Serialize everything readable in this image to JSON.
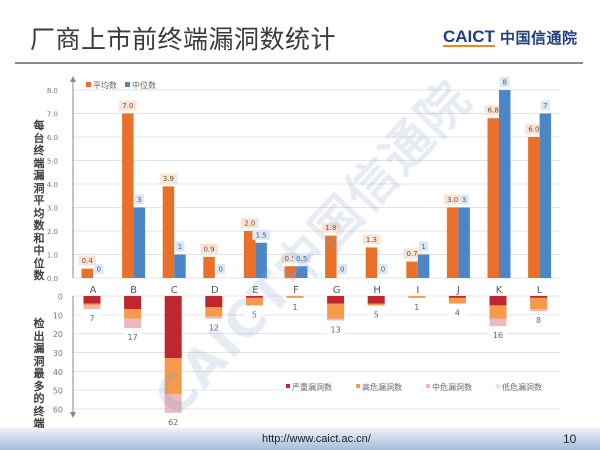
{
  "header": {
    "title": "厂商上市前终端漏洞数统计",
    "logo_en": "CAICT",
    "logo_cn": "中国信通院"
  },
  "watermark": "CAICT中国信通院",
  "footer": {
    "url": "http://www.caict.ac.cn/",
    "page": "10"
  },
  "colors": {
    "mean": "#E8702B",
    "median": "#4C86C6",
    "severe": "#C0262F",
    "high": "#F5994A",
    "medium": "#EDB8BB",
    "low": "#FBE2CC",
    "mean_label_bg": "#FBE4D4",
    "median_label_bg": "#DAE7F5",
    "grid": "#E3E3E3",
    "axis": "#8A8A8A"
  },
  "chart_data": [
    {
      "type": "bar",
      "title": "",
      "xlabel": "",
      "ylabel": "每台终端漏洞平均数和中位数",
      "categories": [
        "A",
        "B",
        "C",
        "D",
        "E",
        "F",
        "G",
        "H",
        "I",
        "J",
        "K",
        "L"
      ],
      "series": [
        {
          "name": "平均数",
          "values": [
            0.4,
            7.0,
            3.9,
            0.9,
            2.0,
            0.5,
            1.8,
            1.3,
            0.7,
            3.0,
            6.8,
            6.0
          ],
          "labels": [
            "0.4",
            "7.0",
            "3.9",
            "0.9",
            "2.0",
            "0.5",
            "1.8",
            "1.3",
            "0.7",
            "3.0",
            "6.8",
            "6.0"
          ]
        },
        {
          "name": "中位数",
          "values": [
            0,
            3,
            1,
            0,
            1.5,
            0.5,
            0,
            0,
            1,
            3,
            8,
            7
          ],
          "labels": [
            "0",
            "3",
            "1",
            "0",
            "1.5",
            "0.5",
            "0",
            "0",
            "1",
            "3",
            "8",
            "7"
          ]
        }
      ],
      "ylim": [
        0,
        8
      ],
      "yticks": [
        "0.0",
        "1.0",
        "2.0",
        "3.0",
        "4.0",
        "5.0",
        "6.0",
        "7.0",
        "8.0"
      ],
      "grid": true,
      "legend_position": "top-left"
    },
    {
      "type": "bar",
      "stacked": true,
      "inverted_y": true,
      "title": "",
      "xlabel": "",
      "ylabel": "检出漏洞最多的终端",
      "categories": [
        "A",
        "B",
        "C",
        "D",
        "E",
        "F",
        "G",
        "H",
        "I",
        "J",
        "K",
        "L"
      ],
      "series": [
        {
          "name": "严重漏洞数",
          "values": [
            4,
            7,
            33,
            6,
            1,
            0,
            4,
            4,
            0,
            1,
            5,
            1
          ]
        },
        {
          "name": "高危漏洞数",
          "values": [
            1,
            5,
            19,
            5,
            4,
            1,
            8,
            1,
            1,
            3,
            7,
            6
          ]
        },
        {
          "name": "中危漏洞数",
          "values": [
            2,
            5,
            10,
            1,
            0,
            0,
            1,
            0,
            0,
            0,
            4,
            1
          ]
        },
        {
          "name": "低危漏洞数",
          "values": [
            0,
            0,
            0,
            0,
            0,
            0,
            0,
            0,
            0,
            0,
            0,
            0
          ]
        }
      ],
      "totals": [
        "7",
        "17",
        "62",
        "12",
        "5",
        "1",
        "13",
        "5",
        "1",
        "4",
        "16",
        "8"
      ],
      "ylim": [
        0,
        60
      ],
      "yticks": [
        "0",
        "10",
        "20",
        "30",
        "40",
        "50",
        "60"
      ],
      "grid": true,
      "legend_position": "bottom-right"
    }
  ]
}
